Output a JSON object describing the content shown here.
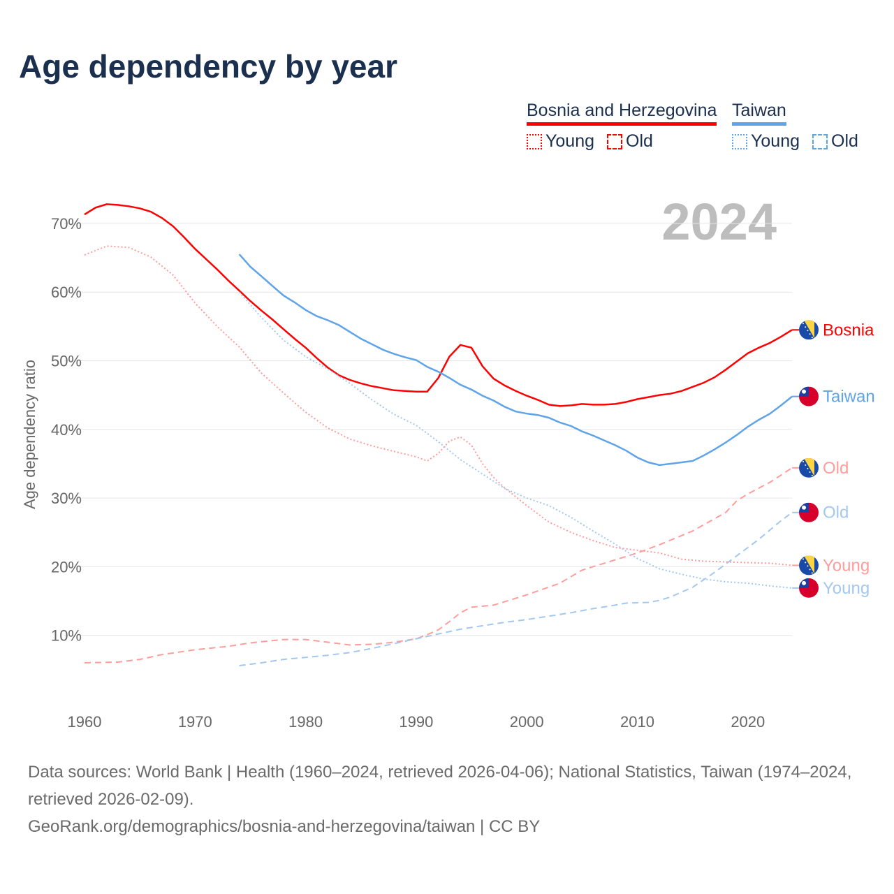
{
  "title": "Age dependency by year",
  "legend": {
    "bosnia": {
      "name": "Bosnia and Herzegovina",
      "young": "Young",
      "old": "Old",
      "color": "#ff0000"
    },
    "taiwan": {
      "name": "Taiwan",
      "young": "Young",
      "old": "Old",
      "color": "#5fa3e8"
    }
  },
  "footer": {
    "sources": "Data sources: World Bank | Health (1960–2024, retrieved 2026-04-06); National Statistics, Taiwan (1974–2024, retrieved 2026-02-09).",
    "link": "GeoRank.org/demographics/bosnia-and-herzegovina/taiwan | CC BY"
  },
  "chart_data": {
    "type": "line",
    "title": "Age dependency by year",
    "year_label": "2024",
    "xlabel": "",
    "ylabel": "Age dependency ratio",
    "xlim": [
      1960,
      2024
    ],
    "ylim": [
      0,
      75
    ],
    "x_ticks": [
      1960,
      1970,
      1980,
      1990,
      2000,
      2010,
      2020
    ],
    "y_ticks": [
      10,
      20,
      30,
      40,
      50,
      60,
      70
    ],
    "y_tick_labels": [
      "10%",
      "20%",
      "30%",
      "40%",
      "50%",
      "60%",
      "70%"
    ],
    "grid": true,
    "series": [
      {
        "name": "Bosnia and Herzegovina",
        "end_label": "Bosnia",
        "country": "bosnia",
        "style": "solid",
        "color": "#ff0000",
        "points": [
          [
            1960,
            71.3
          ],
          [
            1961,
            72.3
          ],
          [
            1962,
            72.8
          ],
          [
            1963,
            72.7
          ],
          [
            1964,
            72.5
          ],
          [
            1965,
            72.2
          ],
          [
            1966,
            71.7
          ],
          [
            1967,
            70.8
          ],
          [
            1968,
            69.6
          ],
          [
            1969,
            68.0
          ],
          [
            1970,
            66.3
          ],
          [
            1971,
            64.8
          ],
          [
            1972,
            63.3
          ],
          [
            1973,
            61.7
          ],
          [
            1974,
            60.2
          ],
          [
            1975,
            58.7
          ],
          [
            1976,
            57.3
          ],
          [
            1977,
            56.0
          ],
          [
            1978,
            54.6
          ],
          [
            1979,
            53.2
          ],
          [
            1980,
            51.9
          ],
          [
            1981,
            50.4
          ],
          [
            1982,
            49.0
          ],
          [
            1983,
            47.9
          ],
          [
            1984,
            47.2
          ],
          [
            1985,
            46.7
          ],
          [
            1986,
            46.3
          ],
          [
            1987,
            46.0
          ],
          [
            1988,
            45.7
          ],
          [
            1989,
            45.6
          ],
          [
            1990,
            45.5
          ],
          [
            1991,
            45.5
          ],
          [
            1992,
            47.5
          ],
          [
            1993,
            50.6
          ],
          [
            1994,
            52.3
          ],
          [
            1995,
            51.9
          ],
          [
            1996,
            49.2
          ],
          [
            1997,
            47.4
          ],
          [
            1998,
            46.4
          ],
          [
            1999,
            45.6
          ],
          [
            2000,
            44.9
          ],
          [
            2001,
            44.3
          ],
          [
            2002,
            43.6
          ],
          [
            2003,
            43.4
          ],
          [
            2004,
            43.5
          ],
          [
            2005,
            43.7
          ],
          [
            2006,
            43.6
          ],
          [
            2007,
            43.6
          ],
          [
            2008,
            43.7
          ],
          [
            2009,
            44.0
          ],
          [
            2010,
            44.4
          ],
          [
            2011,
            44.7
          ],
          [
            2012,
            45.0
          ],
          [
            2013,
            45.2
          ],
          [
            2014,
            45.6
          ],
          [
            2015,
            46.2
          ],
          [
            2016,
            46.8
          ],
          [
            2017,
            47.6
          ],
          [
            2018,
            48.7
          ],
          [
            2019,
            49.9
          ],
          [
            2020,
            51.1
          ],
          [
            2021,
            51.9
          ],
          [
            2022,
            52.6
          ],
          [
            2023,
            53.5
          ],
          [
            2024,
            54.5
          ]
        ]
      },
      {
        "name": "Taiwan",
        "end_label": "Taiwan",
        "country": "taiwan",
        "style": "solid",
        "color": "#5fa3e8",
        "points": [
          [
            1974,
            65.5
          ],
          [
            1975,
            63.7
          ],
          [
            1976,
            62.3
          ],
          [
            1977,
            60.9
          ],
          [
            1978,
            59.5
          ],
          [
            1979,
            58.5
          ],
          [
            1980,
            57.4
          ],
          [
            1981,
            56.5
          ],
          [
            1982,
            55.9
          ],
          [
            1983,
            55.2
          ],
          [
            1984,
            54.2
          ],
          [
            1985,
            53.2
          ],
          [
            1986,
            52.4
          ],
          [
            1987,
            51.6
          ],
          [
            1988,
            51.0
          ],
          [
            1989,
            50.5
          ],
          [
            1990,
            50.1
          ],
          [
            1991,
            49.1
          ],
          [
            1992,
            48.4
          ],
          [
            1993,
            47.5
          ],
          [
            1994,
            46.5
          ],
          [
            1995,
            45.8
          ],
          [
            1996,
            44.9
          ],
          [
            1997,
            44.2
          ],
          [
            1998,
            43.3
          ],
          [
            1999,
            42.6
          ],
          [
            2000,
            42.3
          ],
          [
            2001,
            42.1
          ],
          [
            2002,
            41.7
          ],
          [
            2003,
            41.0
          ],
          [
            2004,
            40.5
          ],
          [
            2005,
            39.7
          ],
          [
            2006,
            39.1
          ],
          [
            2007,
            38.4
          ],
          [
            2008,
            37.7
          ],
          [
            2009,
            36.9
          ],
          [
            2010,
            35.9
          ],
          [
            2011,
            35.2
          ],
          [
            2012,
            34.8
          ],
          [
            2013,
            35.0
          ],
          [
            2014,
            35.2
          ],
          [
            2015,
            35.4
          ],
          [
            2016,
            36.2
          ],
          [
            2017,
            37.1
          ],
          [
            2018,
            38.1
          ],
          [
            2019,
            39.2
          ],
          [
            2020,
            40.4
          ],
          [
            2021,
            41.4
          ],
          [
            2022,
            42.3
          ],
          [
            2023,
            43.5
          ],
          [
            2024,
            44.8
          ]
        ]
      },
      {
        "name": "Bosnia and Herzegovina Old",
        "end_label": "Old",
        "country": "bosnia",
        "style": "dashed",
        "color": "#ff9c9c",
        "points": [
          [
            1960,
            6.0
          ],
          [
            1963,
            6.1
          ],
          [
            1965,
            6.5
          ],
          [
            1967,
            7.2
          ],
          [
            1970,
            7.9
          ],
          [
            1973,
            8.4
          ],
          [
            1975,
            8.9
          ],
          [
            1978,
            9.4
          ],
          [
            1980,
            9.4
          ],
          [
            1982,
            9.0
          ],
          [
            1984,
            8.6
          ],
          [
            1986,
            8.7
          ],
          [
            1988,
            9.0
          ],
          [
            1990,
            9.5
          ],
          [
            1991,
            10.1
          ],
          [
            1992,
            10.8
          ],
          [
            1993,
            12.0
          ],
          [
            1994,
            13.3
          ],
          [
            1995,
            14.1
          ],
          [
            1997,
            14.4
          ],
          [
            2000,
            15.9
          ],
          [
            2003,
            17.6
          ],
          [
            2005,
            19.5
          ],
          [
            2008,
            21.0
          ],
          [
            2010,
            22.0
          ],
          [
            2012,
            23.2
          ],
          [
            2015,
            25.2
          ],
          [
            2018,
            27.9
          ],
          [
            2019,
            29.6
          ],
          [
            2020,
            30.6
          ],
          [
            2022,
            32.3
          ],
          [
            2024,
            34.4
          ]
        ]
      },
      {
        "name": "Taiwan Old",
        "end_label": "Old",
        "country": "taiwan",
        "style": "dashed",
        "color": "#a3c8f0",
        "points": [
          [
            1974,
            5.6
          ],
          [
            1976,
            6.0
          ],
          [
            1978,
            6.5
          ],
          [
            1980,
            6.8
          ],
          [
            1982,
            7.1
          ],
          [
            1984,
            7.5
          ],
          [
            1986,
            8.1
          ],
          [
            1988,
            8.8
          ],
          [
            1990,
            9.5
          ],
          [
            1992,
            10.2
          ],
          [
            1994,
            10.9
          ],
          [
            1996,
            11.4
          ],
          [
            1998,
            11.9
          ],
          [
            2000,
            12.3
          ],
          [
            2002,
            12.8
          ],
          [
            2004,
            13.3
          ],
          [
            2006,
            13.9
          ],
          [
            2008,
            14.4
          ],
          [
            2009,
            14.7
          ],
          [
            2011,
            14.8
          ],
          [
            2012,
            15.1
          ],
          [
            2013,
            15.6
          ],
          [
            2015,
            17.0
          ],
          [
            2017,
            19.2
          ],
          [
            2019,
            21.6
          ],
          [
            2021,
            24.0
          ],
          [
            2023,
            26.7
          ],
          [
            2024,
            27.9
          ]
        ]
      },
      {
        "name": "Bosnia and Herzegovina Young",
        "end_label": "Young",
        "country": "bosnia",
        "style": "dotted",
        "color": "#ff9c9c",
        "points": [
          [
            1960,
            65.4
          ],
          [
            1962,
            66.7
          ],
          [
            1964,
            66.5
          ],
          [
            1966,
            65.1
          ],
          [
            1968,
            62.5
          ],
          [
            1970,
            58.4
          ],
          [
            1972,
            55.0
          ],
          [
            1974,
            52.0
          ],
          [
            1976,
            48.2
          ],
          [
            1978,
            45.3
          ],
          [
            1980,
            42.5
          ],
          [
            1982,
            40.2
          ],
          [
            1984,
            38.6
          ],
          [
            1986,
            37.6
          ],
          [
            1988,
            36.8
          ],
          [
            1990,
            36.0
          ],
          [
            1991,
            35.4
          ],
          [
            1992,
            36.5
          ],
          [
            1993,
            38.3
          ],
          [
            1994,
            38.9
          ],
          [
            1995,
            37.7
          ],
          [
            1996,
            35.0
          ],
          [
            1997,
            33.0
          ],
          [
            1998,
            31.5
          ],
          [
            2000,
            28.9
          ],
          [
            2002,
            26.5
          ],
          [
            2004,
            25.0
          ],
          [
            2006,
            23.8
          ],
          [
            2008,
            22.8
          ],
          [
            2010,
            22.4
          ],
          [
            2012,
            22.0
          ],
          [
            2014,
            21.1
          ],
          [
            2016,
            20.8
          ],
          [
            2018,
            20.7
          ],
          [
            2020,
            20.6
          ],
          [
            2022,
            20.5
          ],
          [
            2024,
            20.2
          ]
        ]
      },
      {
        "name": "Taiwan Young",
        "end_label": "Young",
        "country": "taiwan",
        "style": "dotted",
        "color": "#a3c8f0",
        "points": [
          [
            1974,
            60.0
          ],
          [
            1976,
            56.3
          ],
          [
            1978,
            53.0
          ],
          [
            1980,
            50.6
          ],
          [
            1982,
            48.8
          ],
          [
            1984,
            46.7
          ],
          [
            1986,
            44.3
          ],
          [
            1988,
            42.2
          ],
          [
            1990,
            40.6
          ],
          [
            1992,
            38.2
          ],
          [
            1994,
            35.6
          ],
          [
            1996,
            33.5
          ],
          [
            1998,
            31.4
          ],
          [
            2000,
            30.0
          ],
          [
            2002,
            28.9
          ],
          [
            2004,
            27.2
          ],
          [
            2006,
            25.2
          ],
          [
            2008,
            23.3
          ],
          [
            2010,
            21.2
          ],
          [
            2012,
            19.7
          ],
          [
            2014,
            18.9
          ],
          [
            2016,
            18.2
          ],
          [
            2018,
            17.8
          ],
          [
            2020,
            17.6
          ],
          [
            2022,
            17.2
          ],
          [
            2024,
            16.9
          ]
        ]
      }
    ]
  }
}
